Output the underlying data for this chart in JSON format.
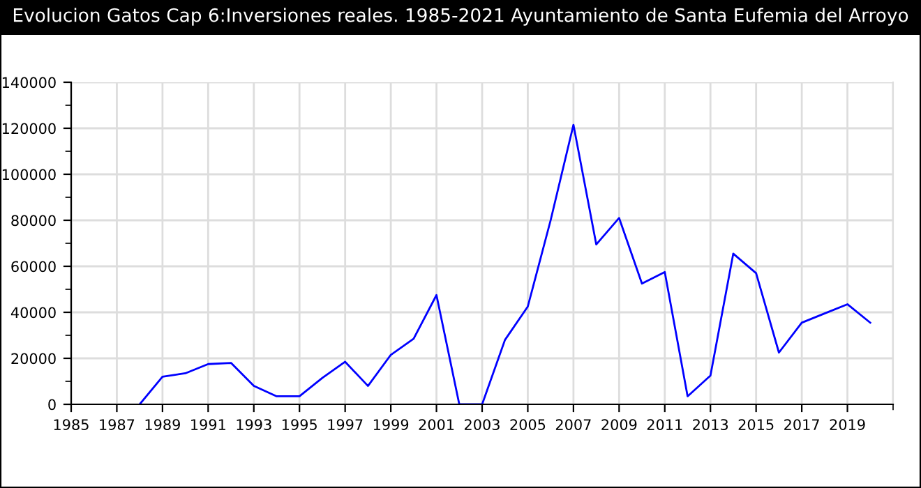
{
  "chart_data": {
    "type": "line",
    "title": "Evolucion Gatos Cap 6:Inversiones reales. 1985-2021 Ayuntamiento de Santa Eufemia del Arroyo",
    "x": [
      1988,
      1989,
      1990,
      1991,
      1992,
      1993,
      1994,
      1995,
      1996,
      1997,
      1998,
      1999,
      2000,
      2001,
      2002,
      2003,
      2004,
      2005,
      2006,
      2007,
      2008,
      2009,
      2010,
      2011,
      2012,
      2013,
      2014,
      2015,
      2016,
      2017,
      2018,
      2019,
      2020
    ],
    "series": [
      {
        "color": "#0000ff",
        "values": [
          0,
          12000,
          13500,
          17500,
          18000,
          8000,
          3500,
          3500,
          11500,
          18500,
          8000,
          21500,
          28500,
          47500,
          0,
          0,
          28000,
          42500,
          80000,
          121500,
          69500,
          81000,
          52500,
          57500,
          3500,
          12500,
          65500,
          57000,
          22500,
          35500,
          39500,
          43500,
          35500
        ]
      }
    ],
    "xlim": [
      1985,
      2021
    ],
    "xticks": [
      1985,
      1987,
      1989,
      1991,
      1993,
      1995,
      1997,
      1999,
      2001,
      2003,
      2005,
      2007,
      2009,
      2011,
      2013,
      2015,
      2017,
      2019,
      {
        "value": 2021,
        "label": null
      }
    ],
    "ylim": [
      0,
      140000
    ],
    "yticks": [
      0,
      {
        "value": 10000,
        "label": null
      },
      20000,
      {
        "value": 30000,
        "label": null
      },
      40000,
      {
        "value": 50000,
        "label": null
      },
      60000,
      {
        "value": 70000,
        "label": null
      },
      80000,
      {
        "value": 90000,
        "label": null
      },
      100000,
      {
        "value": 110000,
        "label": null
      },
      120000,
      {
        "value": 130000,
        "label": null
      },
      140000
    ],
    "grid": true,
    "marker": "none",
    "line_style": "solid",
    "legend": false
  }
}
